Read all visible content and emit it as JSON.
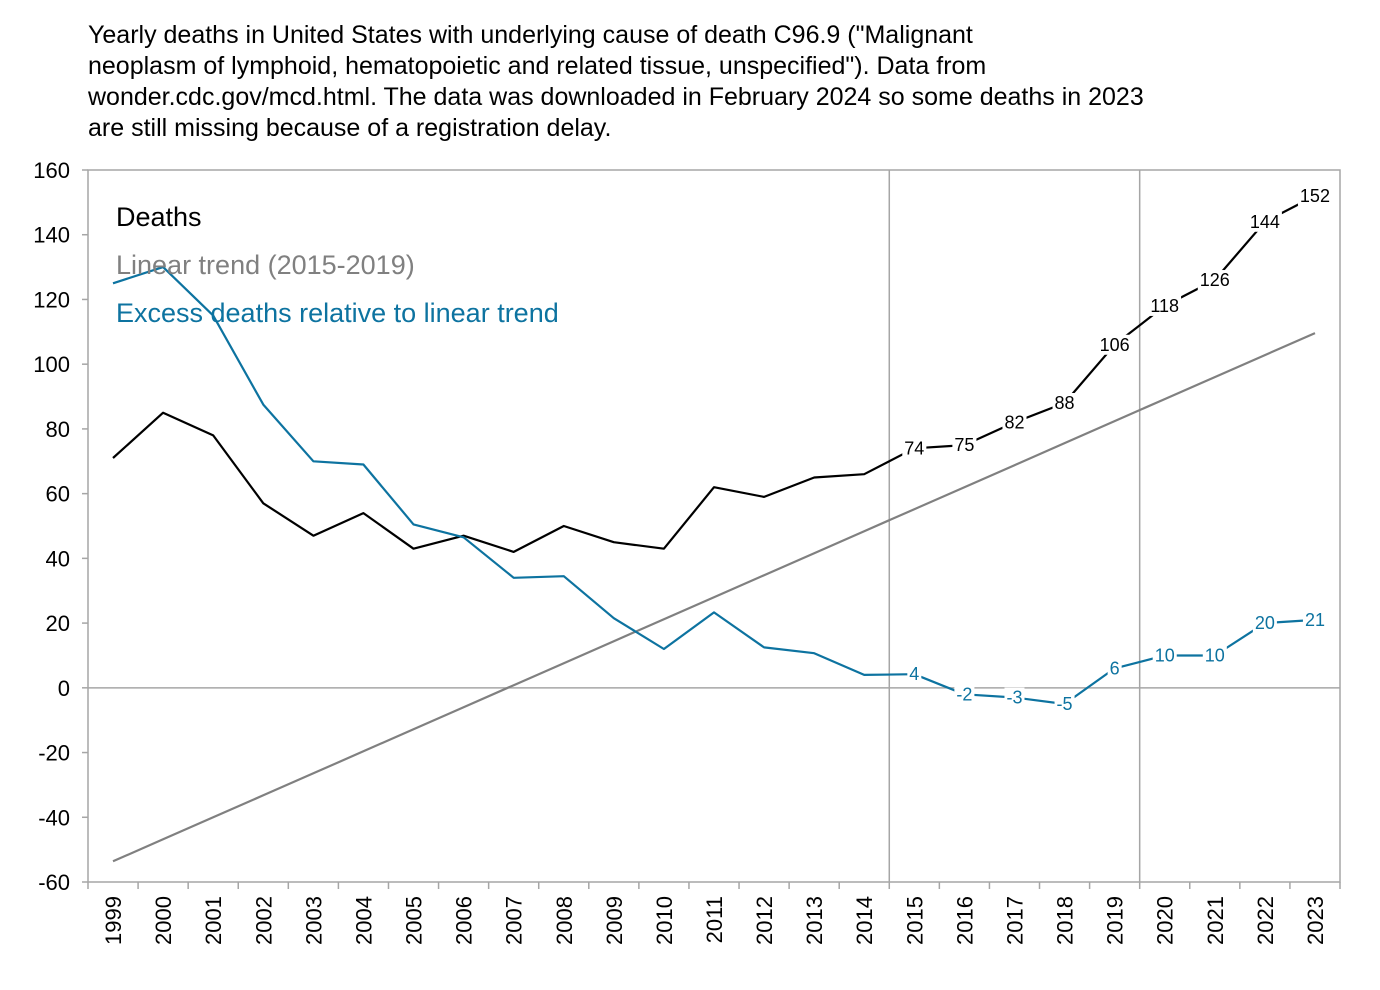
{
  "title_lines": [
    "Yearly deaths in United States with underlying cause of death C96.9 (\"Malignant",
    "neoplasm of lymphoid, hematopoietic and related tissue, unspecified\"). Data from",
    "wonder.cdc.gov/mcd.html. The data was downloaded in February 2024 so some deaths in 2023",
    "are still missing because of a registration delay."
  ],
  "colors": {
    "deaths": "#000000",
    "trend": "#808080",
    "excess": "#0d73a0",
    "axis": "#a6a6a6"
  },
  "chart_data": {
    "type": "line",
    "x": [
      1999,
      2000,
      2001,
      2002,
      2003,
      2004,
      2005,
      2006,
      2007,
      2008,
      2009,
      2010,
      2011,
      2012,
      2013,
      2014,
      2015,
      2016,
      2017,
      2018,
      2019,
      2020,
      2021,
      2022,
      2023
    ],
    "ylim": [
      -60,
      160
    ],
    "yticks": [
      -60,
      -40,
      -20,
      0,
      20,
      40,
      60,
      80,
      100,
      120,
      140,
      160
    ],
    "grid": false,
    "vertical_markers": [
      2014.5,
      2019.5
    ],
    "legend_position": "top-left",
    "series": [
      {
        "name": "Deaths",
        "color": "#000000",
        "values": [
          71,
          85,
          78,
          57,
          47,
          54,
          43,
          47,
          42,
          50,
          45,
          43,
          62,
          59,
          65,
          66,
          74,
          75,
          82,
          88,
          106,
          118,
          126,
          144,
          152
        ],
        "labels": {
          "2015": "74",
          "2016": "75",
          "2017": "82",
          "2018": "88",
          "2019": "106",
          "2020": "118",
          "2021": "126",
          "2022": "144",
          "2023": "152"
        }
      },
      {
        "name": "Linear trend (2015-2019)",
        "color": "#808080",
        "values": [
          -53.6,
          -46.8,
          -40.0,
          -33.2,
          -26.4,
          -19.6,
          -12.8,
          -6.0,
          0.8,
          7.6,
          14.4,
          21.2,
          28.0,
          34.8,
          41.6,
          48.4,
          55.2,
          62.0,
          68.8,
          75.6,
          82.4,
          89.2,
          96.0,
          102.8,
          109.6
        ]
      },
      {
        "name": "Excess deaths relative to linear trend",
        "color": "#0d73a0",
        "values": [
          125,
          130,
          115,
          87.5,
          70,
          69,
          50.5,
          46.5,
          34,
          34.5,
          21.5,
          12,
          23.3,
          12.5,
          10.7,
          4,
          4.2,
          -2,
          -3,
          -5,
          6,
          10,
          10,
          20,
          21
        ],
        "labels": {
          "2015": "4",
          "2016": "-2",
          "2017": "-3",
          "2018": "-5",
          "2019": "6",
          "2020": "10",
          "2021": "10",
          "2022": "20",
          "2023": "21"
        }
      }
    ]
  }
}
